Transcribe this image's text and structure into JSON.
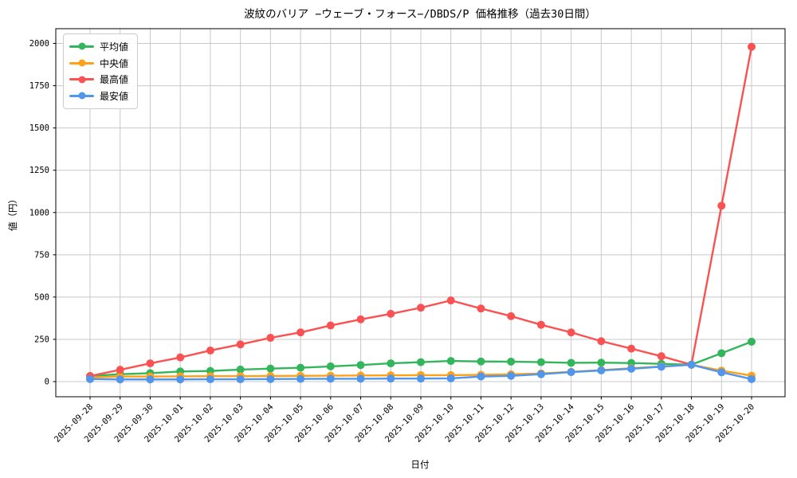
{
  "chart_data": {
    "type": "line",
    "title": "波紋のバリア −ウェーブ・フォース−/DBDS/P 価格推移（過去30日間）",
    "xlabel": "日付",
    "ylabel": "値（円）",
    "x": [
      "2025-09-28",
      "2025-09-29",
      "2025-09-30",
      "2025-10-01",
      "2025-10-02",
      "2025-10-03",
      "2025-10-04",
      "2025-10-05",
      "2025-10-06",
      "2025-10-07",
      "2025-10-08",
      "2025-10-09",
      "2025-10-10",
      "2025-10-11",
      "2025-10-12",
      "2025-10-13",
      "2025-10-14",
      "2025-10-15",
      "2025-10-16",
      "2025-10-17",
      "2025-10-18",
      "2025-10-19",
      "2025-10-20"
    ],
    "series": [
      {
        "name": "平均値",
        "color": "#33b55c",
        "values": [
          33,
          44,
          50,
          60,
          63,
          71,
          77,
          82,
          90,
          98,
          108,
          115,
          122,
          119,
          118,
          115,
          111,
          112,
          110,
          105,
          100,
          168,
          236
        ]
      },
      {
        "name": "中央値",
        "color": "#ffa118",
        "values": [
          25,
          30,
          30,
          31,
          32,
          32,
          33,
          34,
          35,
          36,
          37,
          38,
          38,
          40,
          43,
          48,
          58,
          68,
          79,
          90,
          100,
          65,
          35
        ]
      },
      {
        "name": "最高値",
        "color": "#fa5252",
        "values": [
          33,
          70,
          108,
          143,
          184,
          220,
          259,
          291,
          332,
          368,
          401,
          437,
          480,
          432,
          387,
          336,
          291,
          239,
          195,
          150,
          100,
          1040,
          1980
        ]
      },
      {
        "name": "最安値",
        "color": "#4f96ec",
        "values": [
          15,
          13,
          13,
          13,
          14,
          14,
          15,
          16,
          17,
          17,
          18,
          18,
          19,
          30,
          34,
          44,
          56,
          66,
          76,
          88,
          100,
          55,
          15
        ]
      }
    ],
    "ylim": [
      0,
      2000
    ],
    "ytick_step": 250,
    "grid": true,
    "grid_color": "#c8c8c8",
    "legend_position": "upper left",
    "marker": "circle"
  }
}
